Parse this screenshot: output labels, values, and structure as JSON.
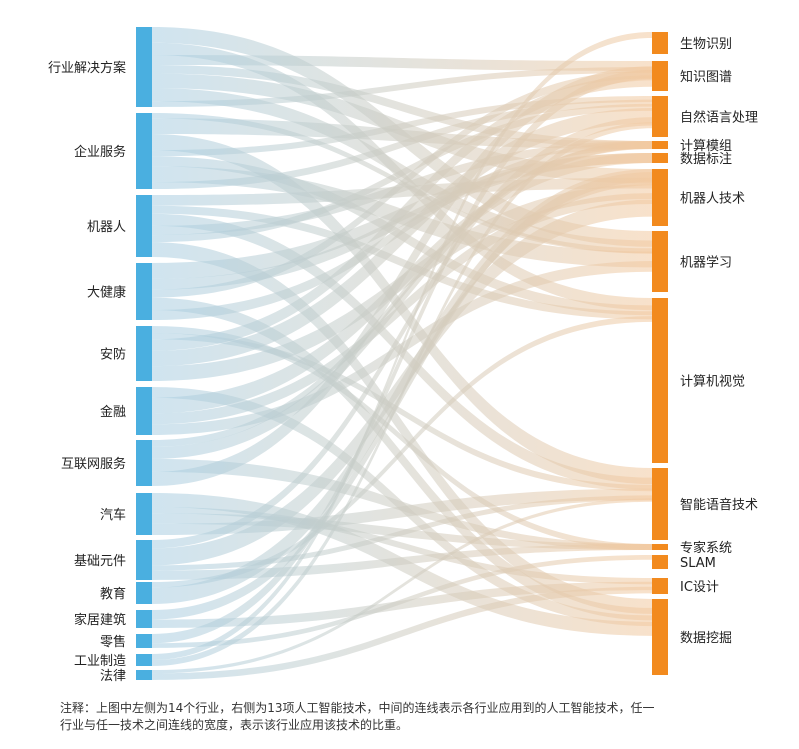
{
  "diagram": {
    "type": "sankey",
    "left_color": "#4aafe0",
    "right_color": "#f28a1e",
    "left_nodes": [
      {
        "label": "行业解决方案"
      },
      {
        "label": "企业服务"
      },
      {
        "label": "机器人"
      },
      {
        "label": "大健康"
      },
      {
        "label": "安防"
      },
      {
        "label": "金融"
      },
      {
        "label": "互联网服务"
      },
      {
        "label": "汽车"
      },
      {
        "label": "基础元件"
      },
      {
        "label": "教育"
      },
      {
        "label": "家居建筑"
      },
      {
        "label": "零售"
      },
      {
        "label": "工业制造"
      },
      {
        "label": "法律"
      }
    ],
    "right_nodes": [
      {
        "label": "生物识别"
      },
      {
        "label": "知识图谱"
      },
      {
        "label": "自然语言处理"
      },
      {
        "label": "计算模组"
      },
      {
        "label": "数据标注"
      },
      {
        "label": "机器人技术"
      },
      {
        "label": "机器学习"
      },
      {
        "label": "计算机视觉"
      },
      {
        "label": "智能语音技术"
      },
      {
        "label": "专家系统"
      },
      {
        "label": "SLAM"
      },
      {
        "label": "IC设计"
      },
      {
        "label": "数据挖掘"
      }
    ]
  },
  "note": {
    "line1": "注释：上图中左侧为14个行业，右侧为13项人工智能技术，中间的连线表示各行业应用到的人工智能技术，任一",
    "line2": "行业与任一技术之间连线的宽度，表示该行业应用该技术的比重。"
  }
}
